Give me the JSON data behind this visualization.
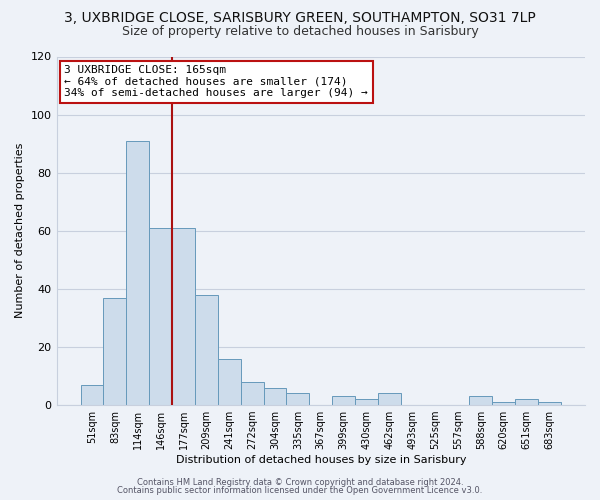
{
  "title": "3, UXBRIDGE CLOSE, SARISBURY GREEN, SOUTHAMPTON, SO31 7LP",
  "subtitle": "Size of property relative to detached houses in Sarisbury",
  "xlabel": "Distribution of detached houses by size in Sarisbury",
  "ylabel": "Number of detached properties",
  "bar_labels": [
    "51sqm",
    "83sqm",
    "114sqm",
    "146sqm",
    "177sqm",
    "209sqm",
    "241sqm",
    "272sqm",
    "304sqm",
    "335sqm",
    "367sqm",
    "399sqm",
    "430sqm",
    "462sqm",
    "493sqm",
    "525sqm",
    "557sqm",
    "588sqm",
    "620sqm",
    "651sqm",
    "683sqm"
  ],
  "bar_values": [
    7,
    37,
    91,
    61,
    61,
    38,
    16,
    8,
    6,
    4,
    0,
    3,
    2,
    4,
    0,
    0,
    0,
    3,
    1,
    2,
    1
  ],
  "bar_color": "#cddceb",
  "bar_edge_color": "#6699bb",
  "vline_position": 3.5,
  "vline_color": "#aa1111",
  "annotation_line1": "3 UXBRIDGE CLOSE: 165sqm",
  "annotation_line2": "← 64% of detached houses are smaller (174)",
  "annotation_line3": "34% of semi-detached houses are larger (94) →",
  "annotation_box_facecolor": "#ffffff",
  "annotation_box_edgecolor": "#bb1111",
  "ylim": [
    0,
    120
  ],
  "yticks": [
    0,
    20,
    40,
    60,
    80,
    100,
    120
  ],
  "footer1": "Contains HM Land Registry data © Crown copyright and database right 2024.",
  "footer2": "Contains public sector information licensed under the Open Government Licence v3.0.",
  "bg_color": "#eef2f8",
  "grid_color": "#c8d0de",
  "title_fontsize": 10,
  "subtitle_fontsize": 9,
  "axis_label_fontsize": 8,
  "tick_fontsize": 7,
  "annotation_fontsize": 8
}
